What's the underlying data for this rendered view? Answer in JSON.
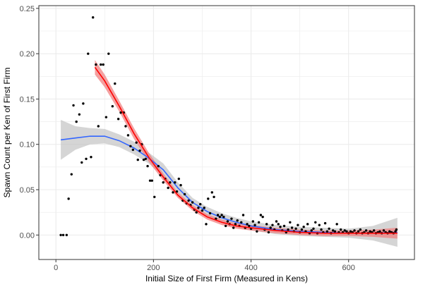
{
  "chart_data": {
    "type": "scatter",
    "xlabel": "Initial Size of First Firm (Measured in Kens)",
    "ylabel": "Spawn Count per Ken of First Firm",
    "xlim": [
      -35,
      735
    ],
    "ylim": [
      -0.027,
      0.253
    ],
    "x_ticks": [
      0,
      200,
      400,
      600
    ],
    "x_tick_labels": [
      "0",
      "200",
      "400",
      "600"
    ],
    "y_ticks": [
      0.0,
      0.05,
      0.1,
      0.15,
      0.2,
      0.25
    ],
    "y_tick_labels": [
      "0.00",
      "0.05",
      "0.10",
      "0.15",
      "0.20",
      "0.25"
    ],
    "grid": true,
    "legend": "none",
    "colors": {
      "points": "#000000",
      "blue_line": "#3366ff",
      "red_line": "#ff0000",
      "red_band": "#f08080",
      "gray_band": "#bfbfbf",
      "gridline": "#ebebeb",
      "panel_border": "#333333"
    },
    "points": [
      [
        10,
        0.0
      ],
      [
        15,
        0.0
      ],
      [
        22,
        0.0
      ],
      [
        26,
        0.04
      ],
      [
        32,
        0.067
      ],
      [
        36,
        0.143
      ],
      [
        42,
        0.125
      ],
      [
        48,
        0.133
      ],
      [
        53,
        0.08
      ],
      [
        56,
        0.145
      ],
      [
        62,
        0.084
      ],
      [
        66,
        0.2
      ],
      [
        72,
        0.086
      ],
      [
        76,
        0.24
      ],
      [
        82,
        0.188
      ],
      [
        87,
        0.12
      ],
      [
        92,
        0.188
      ],
      [
        97,
        0.188
      ],
      [
        103,
        0.13
      ],
      [
        108,
        0.2
      ],
      [
        116,
        0.142
      ],
      [
        121,
        0.167
      ],
      [
        128,
        0.128
      ],
      [
        133,
        0.135
      ],
      [
        139,
        0.135
      ],
      [
        143,
        0.12
      ],
      [
        148,
        0.11
      ],
      [
        153,
        0.098
      ],
      [
        158,
        0.094
      ],
      [
        165,
        0.102
      ],
      [
        168,
        0.083
      ],
      [
        172,
        0.093
      ],
      [
        176,
        0.1
      ],
      [
        180,
        0.083
      ],
      [
        184,
        0.084
      ],
      [
        188,
        0.076
      ],
      [
        193,
        0.06
      ],
      [
        197,
        0.06
      ],
      [
        202,
        0.042
      ],
      [
        210,
        0.076
      ],
      [
        214,
        0.066
      ],
      [
        220,
        0.058
      ],
      [
        224,
        0.062
      ],
      [
        230,
        0.052
      ],
      [
        234,
        0.058
      ],
      [
        240,
        0.047
      ],
      [
        244,
        0.058
      ],
      [
        248,
        0.048
      ],
      [
        252,
        0.062
      ],
      [
        256,
        0.055
      ],
      [
        260,
        0.038
      ],
      [
        264,
        0.045
      ],
      [
        268,
        0.035
      ],
      [
        272,
        0.038
      ],
      [
        276,
        0.033
      ],
      [
        280,
        0.036
      ],
      [
        284,
        0.028
      ],
      [
        288,
        0.025
      ],
      [
        292,
        0.03
      ],
      [
        296,
        0.034
      ],
      [
        300,
        0.027
      ],
      [
        304,
        0.03
      ],
      [
        308,
        0.012
      ],
      [
        312,
        0.04
      ],
      [
        316,
        0.024
      ],
      [
        320,
        0.047
      ],
      [
        324,
        0.042
      ],
      [
        328,
        0.018
      ],
      [
        332,
        0.022
      ],
      [
        336,
        0.02
      ],
      [
        340,
        0.022
      ],
      [
        344,
        0.02
      ],
      [
        348,
        0.01
      ],
      [
        352,
        0.015
      ],
      [
        356,
        0.012
      ],
      [
        360,
        0.018
      ],
      [
        364,
        0.008
      ],
      [
        368,
        0.012
      ],
      [
        372,
        0.016
      ],
      [
        376,
        0.01
      ],
      [
        380,
        0.014
      ],
      [
        384,
        0.022
      ],
      [
        388,
        0.008
      ],
      [
        392,
        0.012
      ],
      [
        396,
        0.01
      ],
      [
        400,
        0.007
      ],
      [
        404,
        0.015
      ],
      [
        408,
        0.011
      ],
      [
        412,
        0.004
      ],
      [
        416,
        0.014
      ],
      [
        420,
        0.022
      ],
      [
        424,
        0.02
      ],
      [
        428,
        0.006
      ],
      [
        432,
        0.012
      ],
      [
        436,
        0.003
      ],
      [
        440,
        0.008
      ],
      [
        444,
        0.011
      ],
      [
        448,
        0.006
      ],
      [
        452,
        0.015
      ],
      [
        456,
        0.012
      ],
      [
        460,
        0.009
      ],
      [
        464,
        0.005
      ],
      [
        468,
        0.01
      ],
      [
        472,
        0.003
      ],
      [
        476,
        0.006
      ],
      [
        480,
        0.014
      ],
      [
        484,
        0.008
      ],
      [
        488,
        0.004
      ],
      [
        492,
        0.007
      ],
      [
        496,
        0.011
      ],
      [
        500,
        0.003
      ],
      [
        504,
        0.006
      ],
      [
        508,
        0.009
      ],
      [
        512,
        0.004
      ],
      [
        516,
        0.012
      ],
      [
        520,
        0.002
      ],
      [
        524,
        0.005
      ],
      [
        528,
        0.007
      ],
      [
        532,
        0.014
      ],
      [
        536,
        0.002
      ],
      [
        540,
        0.011
      ],
      [
        544,
        0.006
      ],
      [
        548,
        0.003
      ],
      [
        552,
        0.013
      ],
      [
        556,
        0.004
      ],
      [
        560,
        0.007
      ],
      [
        564,
        0.002
      ],
      [
        568,
        0.005
      ],
      [
        572,
        0.004
      ],
      [
        576,
        0.012
      ],
      [
        580,
        0.003
      ],
      [
        584,
        0.006
      ],
      [
        588,
        0.003
      ],
      [
        592,
        0.005
      ],
      [
        596,
        0.004
      ],
      [
        600,
        0.002
      ],
      [
        604,
        0.004
      ],
      [
        608,
        0.003
      ],
      [
        612,
        0.005
      ],
      [
        616,
        0.002
      ],
      [
        620,
        0.004
      ],
      [
        624,
        0.006
      ],
      [
        628,
        0.002
      ],
      [
        632,
        0.003
      ],
      [
        636,
        0.005
      ],
      [
        640,
        0.002
      ],
      [
        644,
        0.004
      ],
      [
        648,
        0.003
      ],
      [
        652,
        0.005
      ],
      [
        656,
        0.002
      ],
      [
        660,
        0.003
      ],
      [
        664,
        0.004
      ],
      [
        668,
        0.002
      ],
      [
        672,
        0.005
      ],
      [
        676,
        0.003
      ],
      [
        680,
        0.002
      ],
      [
        684,
        0.004
      ],
      [
        688,
        0.003
      ],
      [
        692,
        0.002
      ],
      [
        696,
        0.004
      ],
      [
        698,
        0.006
      ]
    ],
    "blue_curve": {
      "x": [
        10,
        40,
        70,
        100,
        130,
        160,
        190,
        220,
        250,
        280,
        310,
        340,
        370,
        400,
        450,
        500,
        550,
        600,
        650,
        700
      ],
      "y": [
        0.105,
        0.107,
        0.109,
        0.109,
        0.104,
        0.096,
        0.085,
        0.072,
        0.052,
        0.036,
        0.026,
        0.019,
        0.014,
        0.01,
        0.006,
        0.004,
        0.003,
        0.002,
        0.002,
        0.003
      ],
      "lo": [
        0.083,
        0.094,
        0.1,
        0.101,
        0.097,
        0.089,
        0.079,
        0.065,
        0.046,
        0.031,
        0.021,
        0.014,
        0.009,
        0.005,
        0.001,
        -0.001,
        -0.002,
        -0.003,
        -0.006,
        -0.013
      ],
      "hi": [
        0.127,
        0.12,
        0.118,
        0.117,
        0.111,
        0.103,
        0.091,
        0.079,
        0.058,
        0.041,
        0.031,
        0.024,
        0.019,
        0.015,
        0.011,
        0.009,
        0.008,
        0.007,
        0.01,
        0.019
      ]
    },
    "red_curve": {
      "x": [
        80,
        100,
        130,
        160,
        190,
        220,
        250,
        280,
        310,
        340,
        370,
        400,
        450,
        500,
        550,
        600,
        650,
        700
      ],
      "y": [
        0.185,
        0.17,
        0.142,
        0.112,
        0.086,
        0.064,
        0.044,
        0.03,
        0.02,
        0.014,
        0.01,
        0.008,
        0.005,
        0.003,
        0.002,
        0.002,
        0.002,
        0.002
      ],
      "lo": [
        0.177,
        0.163,
        0.136,
        0.106,
        0.081,
        0.06,
        0.041,
        0.027,
        0.017,
        0.011,
        0.007,
        0.005,
        0.002,
        0.0,
        -0.001,
        -0.001,
        -0.002,
        -0.004
      ],
      "hi": [
        0.193,
        0.177,
        0.148,
        0.118,
        0.091,
        0.068,
        0.047,
        0.033,
        0.023,
        0.017,
        0.013,
        0.011,
        0.008,
        0.006,
        0.005,
        0.005,
        0.006,
        0.008
      ]
    }
  }
}
